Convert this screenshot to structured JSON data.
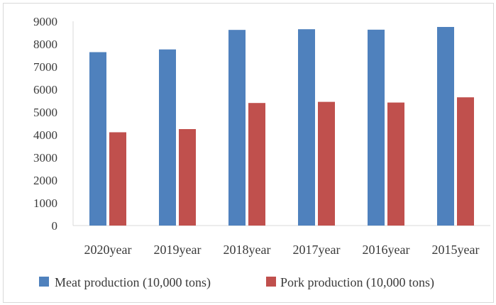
{
  "chart_data": {
    "type": "bar",
    "categories": [
      "2020year",
      "2019year",
      "2018year",
      "2017year",
      "2016year",
      "2015year"
    ],
    "series": [
      {
        "name": "Meat production (10,000 tons)",
        "color": "#4f81bd",
        "values": [
          7640,
          7760,
          8620,
          8650,
          8630,
          8750
        ]
      },
      {
        "name": "Pork production (10,000 tons)",
        "color": "#c0504d",
        "values": [
          4110,
          4250,
          5400,
          5450,
          5420,
          5650
        ]
      }
    ],
    "ylim": [
      0,
      9000
    ],
    "yticks": [
      "0",
      "1000",
      "2000",
      "3000",
      "4000",
      "5000",
      "6000",
      "7000",
      "8000",
      "9000"
    ],
    "grid": false,
    "legend_position": "bottom"
  }
}
